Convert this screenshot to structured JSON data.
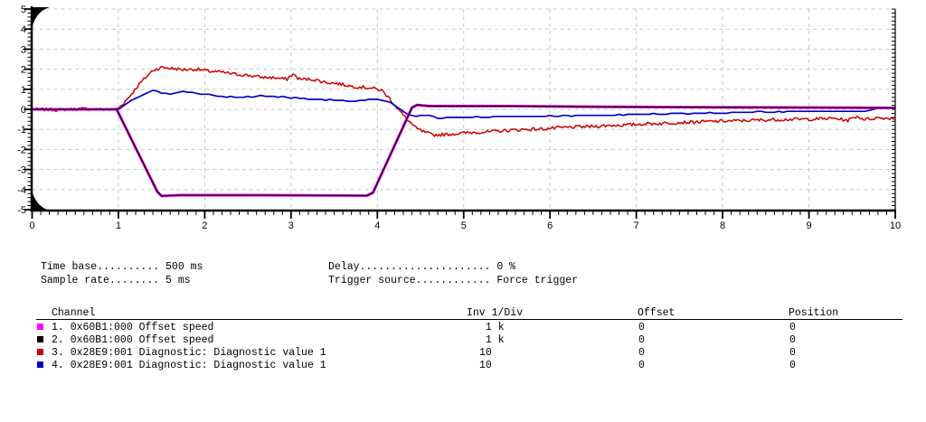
{
  "chart_data": {
    "type": "line",
    "title": "",
    "xlabel": "",
    "ylabel": "",
    "x": {
      "min": 0,
      "max": 10,
      "major_tick": 1,
      "minor_tick": 0.1,
      "tick_labels": [
        "0",
        "1",
        "2",
        "3",
        "4",
        "5",
        "6",
        "7",
        "8",
        "9",
        "10"
      ]
    },
    "y": {
      "min": -5,
      "max": 5,
      "major_tick": 1,
      "minor_tick": 0.2,
      "tick_labels": [
        "5",
        "4",
        "3",
        "2",
        "1",
        "0",
        "-1",
        "-2",
        "-3",
        "-4",
        "-5"
      ]
    },
    "grid": "dashed",
    "grid_color": "#c8c8c8",
    "axis_color": "#000000",
    "legend_position": "table-below",
    "time_base": "500 ms",
    "sample_rate": "5 ms",
    "delay": "0 %",
    "trigger_source": "Force trigger",
    "series": [
      {
        "name": "ch3-diagnostic-value-1",
        "channel": 3,
        "color": "#cc0000",
        "width": 1.5,
        "noise": 0.08,
        "step": 0.018,
        "quantize": 0,
        "seed": 7,
        "points": [
          [
            0,
            0
          ],
          [
            0.3,
            -0.02
          ],
          [
            0.6,
            0.03
          ],
          [
            0.9,
            -0.02
          ],
          [
            1.0,
            0.05
          ],
          [
            1.1,
            0.5
          ],
          [
            1.25,
            1.3
          ],
          [
            1.4,
            1.95
          ],
          [
            1.5,
            2.1
          ],
          [
            1.6,
            2.05
          ],
          [
            1.75,
            1.98
          ],
          [
            1.9,
            2.0
          ],
          [
            2.05,
            1.9
          ],
          [
            2.2,
            1.85
          ],
          [
            2.35,
            1.75
          ],
          [
            2.5,
            1.7
          ],
          [
            2.65,
            1.6
          ],
          [
            2.8,
            1.58
          ],
          [
            2.95,
            1.5
          ],
          [
            3.02,
            1.75
          ],
          [
            3.1,
            1.5
          ],
          [
            3.25,
            1.5
          ],
          [
            3.4,
            1.35
          ],
          [
            3.55,
            1.28
          ],
          [
            3.7,
            1.15
          ],
          [
            3.85,
            1.1
          ],
          [
            3.95,
            1.05
          ],
          [
            4.05,
            0.95
          ],
          [
            4.15,
            0.5
          ],
          [
            4.3,
            -0.3
          ],
          [
            4.45,
            -0.95
          ],
          [
            4.55,
            -1.15
          ],
          [
            4.65,
            -1.28
          ],
          [
            4.8,
            -1.25
          ],
          [
            4.95,
            -1.2
          ],
          [
            5.1,
            -1.15
          ],
          [
            5.3,
            -1.12
          ],
          [
            5.5,
            -1.05
          ],
          [
            5.7,
            -1.0
          ],
          [
            5.9,
            -0.98
          ],
          [
            6.1,
            -0.92
          ],
          [
            6.3,
            -0.88
          ],
          [
            6.5,
            -0.85
          ],
          [
            6.7,
            -0.8
          ],
          [
            6.9,
            -0.78
          ],
          [
            7.1,
            -0.72
          ],
          [
            7.3,
            -0.7
          ],
          [
            7.5,
            -0.65
          ],
          [
            7.7,
            -0.63
          ],
          [
            7.9,
            -0.6
          ],
          [
            8.1,
            -0.58
          ],
          [
            8.3,
            -0.55
          ],
          [
            8.5,
            -0.53
          ],
          [
            8.7,
            -0.5
          ],
          [
            8.9,
            -0.5
          ],
          [
            9.1,
            -0.48
          ],
          [
            9.3,
            -0.45
          ],
          [
            9.45,
            -0.55
          ],
          [
            9.55,
            -0.35
          ],
          [
            9.65,
            -0.5
          ],
          [
            9.8,
            -0.42
          ],
          [
            10,
            -0.45
          ]
        ]
      },
      {
        "name": "ch4-diagnostic-value-1",
        "channel": 4,
        "color": "#0000cc",
        "width": 1.7,
        "noise": 0.02,
        "step": 0.05,
        "quantize": 0.05,
        "seed": 3,
        "points": [
          [
            0,
            0
          ],
          [
            1.0,
            0
          ],
          [
            1.1,
            0.3
          ],
          [
            1.25,
            0.65
          ],
          [
            1.4,
            0.95
          ],
          [
            1.5,
            0.82
          ],
          [
            1.62,
            0.78
          ],
          [
            1.72,
            0.9
          ],
          [
            1.85,
            0.87
          ],
          [
            1.95,
            0.75
          ],
          [
            2.1,
            0.7
          ],
          [
            2.25,
            0.63
          ],
          [
            2.4,
            0.6
          ],
          [
            2.55,
            0.62
          ],
          [
            2.65,
            0.68
          ],
          [
            2.8,
            0.64
          ],
          [
            2.95,
            0.6
          ],
          [
            3.1,
            0.55
          ],
          [
            3.25,
            0.52
          ],
          [
            3.4,
            0.48
          ],
          [
            3.55,
            0.43
          ],
          [
            3.68,
            0.39
          ],
          [
            3.8,
            0.42
          ],
          [
            3.95,
            0.5
          ],
          [
            4.05,
            0.48
          ],
          [
            4.15,
            0.35
          ],
          [
            4.25,
            0.05
          ],
          [
            4.35,
            -0.25
          ],
          [
            4.45,
            -0.35
          ],
          [
            4.52,
            -0.25
          ],
          [
            4.6,
            -0.32
          ],
          [
            4.7,
            -0.43
          ],
          [
            4.85,
            -0.4
          ],
          [
            5.0,
            -0.4
          ],
          [
            5.3,
            -0.37
          ],
          [
            5.6,
            -0.35
          ],
          [
            5.9,
            -0.34
          ],
          [
            6.2,
            -0.32
          ],
          [
            6.5,
            -0.3
          ],
          [
            6.8,
            -0.28
          ],
          [
            7.1,
            -0.25
          ],
          [
            7.4,
            -0.22
          ],
          [
            7.7,
            -0.2
          ],
          [
            8.0,
            -0.17
          ],
          [
            8.3,
            -0.14
          ],
          [
            8.6,
            -0.12
          ],
          [
            8.9,
            -0.1
          ],
          [
            9.2,
            -0.1
          ],
          [
            9.5,
            -0.1
          ],
          [
            9.7,
            -0.05
          ],
          [
            9.85,
            0.08
          ],
          [
            10,
            0.1
          ]
        ]
      },
      {
        "name": "ch1-offset-speed",
        "channel": 1,
        "color": "#ff00ff",
        "width": 3,
        "noise": 0,
        "step": 0,
        "quantize": 0,
        "seed": 1,
        "points": [
          [
            0,
            0
          ],
          [
            0.98,
            0
          ],
          [
            1.45,
            -4.1
          ],
          [
            1.5,
            -4.32
          ],
          [
            1.7,
            -4.28
          ],
          [
            2.6,
            -4.28
          ],
          [
            3.88,
            -4.3
          ],
          [
            3.95,
            -4.15
          ],
          [
            4.4,
            0.08
          ],
          [
            4.46,
            0.22
          ],
          [
            4.6,
            0.16
          ],
          [
            5.5,
            0.16
          ],
          [
            6.5,
            0.13
          ],
          [
            8.0,
            0.1
          ],
          [
            9.0,
            0.09
          ],
          [
            10,
            0.07
          ]
        ]
      },
      {
        "name": "ch2-offset-speed",
        "channel": 2,
        "color": "#000000",
        "width": 1.3,
        "noise": 0,
        "step": 0,
        "quantize": 0,
        "seed": 1,
        "points": [
          [
            0,
            0
          ],
          [
            0.98,
            0
          ],
          [
            1.45,
            -4.1
          ],
          [
            1.5,
            -4.32
          ],
          [
            1.7,
            -4.28
          ],
          [
            2.6,
            -4.28
          ],
          [
            3.88,
            -4.3
          ],
          [
            3.95,
            -4.15
          ],
          [
            4.4,
            0.08
          ],
          [
            4.46,
            0.22
          ],
          [
            4.6,
            0.16
          ],
          [
            5.5,
            0.16
          ],
          [
            6.5,
            0.13
          ],
          [
            8.0,
            0.1
          ],
          [
            9.0,
            0.09
          ],
          [
            10,
            0.07
          ]
        ]
      }
    ]
  },
  "info": {
    "left_text": "Time base.......... 500 ms\nSample rate........ 5 ms",
    "right_text": "Delay..................... 0 %\nTrigger source............ Force trigger"
  },
  "table": {
    "headers": [
      "Channel",
      "Inv 1/Div",
      "Offset",
      "Position"
    ],
    "rows": [
      {
        "color": "#ff00ff",
        "channel": "1. 0x60B1:000 Offset speed",
        "inv": " 1 k",
        "offset": "0",
        "position": "0"
      },
      {
        "color": "#000000",
        "channel": "2. 0x60B1:000 Offset speed",
        "inv": " 1 k",
        "offset": "0",
        "position": "0"
      },
      {
        "color": "#cc0000",
        "channel": "3. 0x28E9:001 Diagnostic: Diagnostic value 1",
        "inv": "10",
        "offset": "0",
        "position": "0"
      },
      {
        "color": "#0000cc",
        "channel": "4. 0x28E9:001 Diagnostic: Diagnostic value 1",
        "inv": "10",
        "offset": "0",
        "position": "0"
      }
    ]
  }
}
